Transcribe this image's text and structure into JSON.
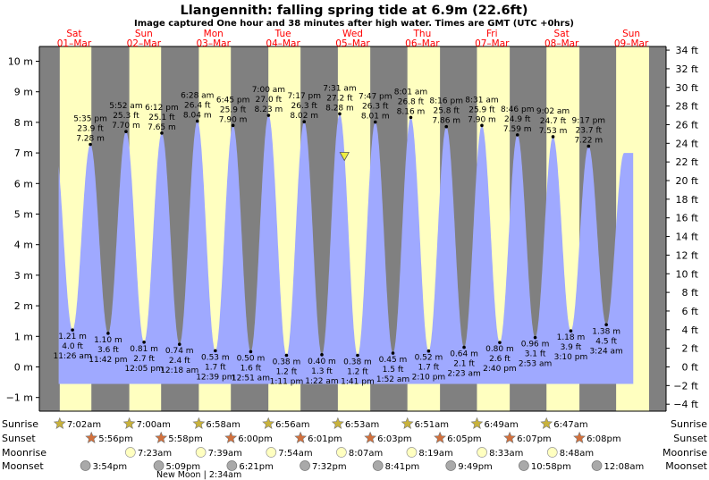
{
  "title": "Llangennith: falling  spring tide at 6.9m (22.6ft)",
  "subtitle": "Image captured One hour and 38 minutes after high water. Times are GMT (UTC +0hrs)",
  "days": [
    {
      "day": "Sat",
      "date": "01–Mar"
    },
    {
      "day": "Sun",
      "date": "02–Mar"
    },
    {
      "day": "Mon",
      "date": "03–Mar"
    },
    {
      "day": "Tue",
      "date": "04–Mar"
    },
    {
      "day": "Wed",
      "date": "05–Mar"
    },
    {
      "day": "Thu",
      "date": "06–Mar"
    },
    {
      "day": "Fri",
      "date": "07–Mar"
    },
    {
      "day": "Sat",
      "date": "08–Mar"
    },
    {
      "day": "Sun",
      "date": "09–Mar"
    }
  ],
  "colors": {
    "night": "#808080",
    "day": "#ffffc0",
    "tide": "#9fa9ff",
    "sunrise_star": "#c8b23c",
    "sunset_star": "#d2703c",
    "moonrise_disc": "#ffffc0",
    "moonset_disc": "#a9a9a9",
    "marker": "#eeee40",
    "day_label": "#ff0000"
  },
  "chart_data": {
    "type": "area",
    "y_left": {
      "unit": "m",
      "min": -1,
      "max": 10,
      "ticks": [
        "−1 m",
        "0 m",
        "1 m",
        "2 m",
        "3 m",
        "4 m",
        "5 m",
        "6 m",
        "7 m",
        "8 m",
        "9 m",
        "10 m"
      ]
    },
    "y_right": {
      "unit": "ft",
      "ticks": [
        "−4 ft",
        "−2 ft",
        "0 ft",
        "2 ft",
        "4 ft",
        "6 ft",
        "8 ft",
        "10 ft",
        "12 ft",
        "14 ft",
        "16 ft",
        "18 ft",
        "20 ft",
        "22 ft",
        "24 ft",
        "26 ft",
        "28 ft",
        "30 ft",
        "32 ft",
        "34 ft"
      ]
    },
    "start": "Sat 01-Mar 00:00",
    "end": "Sun 09-Mar 24:00",
    "current_marker": {
      "time": "Wed 05-Mar 09:09",
      "height_m": 6.9
    },
    "tides": [
      {
        "time": "Sat 01-Mar 11:26",
        "type": "low",
        "m": 1.21,
        "labels": [
          "1.21 m",
          "4.0 ft",
          "11:26 am"
        ]
      },
      {
        "time": "Sat 01-Mar 17:35",
        "type": "high",
        "m": 7.28,
        "labels": [
          "5:35 pm",
          "23.9 ft",
          "7.28 m"
        ]
      },
      {
        "time": "Sat 01-Mar 23:42",
        "type": "low",
        "m": 1.1,
        "labels": [
          "1.10 m",
          "3.6 ft",
          "11:42 pm"
        ]
      },
      {
        "time": "Sun 02-Mar 05:52",
        "type": "high",
        "m": 7.7,
        "labels": [
          "5:52 am",
          "25.3 ft",
          "7.70 m"
        ]
      },
      {
        "time": "Sun 02-Mar 12:05",
        "type": "low",
        "m": 0.81,
        "labels": [
          "0.81 m",
          "2.7 ft",
          "12:05 pm"
        ]
      },
      {
        "time": "Sun 02-Mar 18:12",
        "type": "high",
        "m": 7.65,
        "labels": [
          "6:12 pm",
          "25.1 ft",
          "7.65 m"
        ]
      },
      {
        "time": "Mon 03-Mar 00:18",
        "type": "low",
        "m": 0.74,
        "labels": [
          "0.74 m",
          "2.4 ft",
          "12:18 am"
        ]
      },
      {
        "time": "Mon 03-Mar 06:28",
        "type": "high",
        "m": 8.04,
        "labels": [
          "6:28 am",
          "26.4 ft",
          "8.04 m"
        ]
      },
      {
        "time": "Mon 03-Mar 12:39",
        "type": "low",
        "m": 0.53,
        "labels": [
          "0.53 m",
          "1.7 ft",
          "12:39 pm"
        ]
      },
      {
        "time": "Mon 03-Mar 18:45",
        "type": "high",
        "m": 7.9,
        "labels": [
          "6:45 pm",
          "25.9 ft",
          "7.90 m"
        ]
      },
      {
        "time": "Tue 04-Mar 00:51",
        "type": "low",
        "m": 0.5,
        "labels": [
          "0.50 m",
          "1.6 ft",
          "12:51 am"
        ]
      },
      {
        "time": "Tue 04-Mar 07:00",
        "type": "high",
        "m": 8.23,
        "labels": [
          "7:00 am",
          "27.0 ft",
          "8.23 m"
        ]
      },
      {
        "time": "Tue 04-Mar 13:11",
        "type": "low",
        "m": 0.38,
        "labels": [
          "0.38 m",
          "1.2 ft",
          "1:11 pm"
        ]
      },
      {
        "time": "Tue 04-Mar 19:17",
        "type": "high",
        "m": 8.02,
        "labels": [
          "7:17 pm",
          "26.3 ft",
          "8.02 m"
        ]
      },
      {
        "time": "Wed 05-Mar 01:22",
        "type": "low",
        "m": 0.4,
        "labels": [
          "0.40 m",
          "1.3 ft",
          "1:22 am"
        ]
      },
      {
        "time": "Wed 05-Mar 07:31",
        "type": "high",
        "m": 8.28,
        "labels": [
          "7:31 am",
          "27.2 ft",
          "8.28 m"
        ]
      },
      {
        "time": "Wed 05-Mar 13:41",
        "type": "low",
        "m": 0.38,
        "labels": [
          "0.38 m",
          "1.2 ft",
          "1:41 pm"
        ]
      },
      {
        "time": "Wed 05-Mar 19:47",
        "type": "high",
        "m": 8.01,
        "labels": [
          "7:47 pm",
          "26.3 ft",
          "8.01 m"
        ]
      },
      {
        "time": "Thu 06-Mar 01:52",
        "type": "low",
        "m": 0.45,
        "labels": [
          "0.45 m",
          "1.5 ft",
          "1:52 am"
        ]
      },
      {
        "time": "Thu 06-Mar 08:01",
        "type": "high",
        "m": 8.16,
        "labels": [
          "8:01 am",
          "26.8 ft",
          "8.16 m"
        ]
      },
      {
        "time": "Thu 06-Mar 14:10",
        "type": "low",
        "m": 0.52,
        "labels": [
          "0.52 m",
          "1.7 ft",
          "2:10 pm"
        ]
      },
      {
        "time": "Thu 06-Mar 20:16",
        "type": "high",
        "m": 7.86,
        "labels": [
          "8:16 pm",
          "25.8 ft",
          "7.86 m"
        ]
      },
      {
        "time": "Fri 07-Mar 02:23",
        "type": "low",
        "m": 0.64,
        "labels": [
          "0.64 m",
          "2.1 ft",
          "2:23 am"
        ]
      },
      {
        "time": "Fri 07-Mar 08:31",
        "type": "high",
        "m": 7.9,
        "labels": [
          "8:31 am",
          "25.9 ft",
          "7.90 m"
        ]
      },
      {
        "time": "Fri 07-Mar 14:40",
        "type": "low",
        "m": 0.8,
        "labels": [
          "0.80 m",
          "2.6 ft",
          "2:40 pm"
        ]
      },
      {
        "time": "Fri 07-Mar 20:46",
        "type": "high",
        "m": 7.59,
        "labels": [
          "8:46 pm",
          "24.9 ft",
          "7.59 m"
        ]
      },
      {
        "time": "Sat 08-Mar 02:53",
        "type": "low",
        "m": 0.96,
        "labels": [
          "0.96 m",
          "3.1 ft",
          "2:53 am"
        ]
      },
      {
        "time": "Sat 08-Mar 09:02",
        "type": "high",
        "m": 7.53,
        "labels": [
          "9:02 am",
          "24.7 ft",
          "7.53 m"
        ]
      },
      {
        "time": "Sat 08-Mar 15:10",
        "type": "low",
        "m": 1.18,
        "labels": [
          "1.18 m",
          "3.9 ft",
          "3:10 pm"
        ]
      },
      {
        "time": "Sat 08-Mar 21:17",
        "type": "high",
        "m": 7.22,
        "labels": [
          "9:17 pm",
          "23.7 ft",
          "7.22 m"
        ]
      },
      {
        "time": "Sun 09-Mar 03:24",
        "type": "low",
        "m": 1.38,
        "labels": [
          "1.38 m",
          "4.5 ft",
          "3:24 am"
        ]
      }
    ]
  },
  "sun_moon": {
    "row_labels": [
      "Sunrise",
      "Sunset",
      "Moonrise",
      "Moonset"
    ],
    "sunrise": [
      "7:02am",
      "7:00am",
      "6:58am",
      "6:56am",
      "6:53am",
      "6:51am",
      "6:49am",
      "6:47am"
    ],
    "sunset": [
      "5:56pm",
      "5:58pm",
      "6:00pm",
      "6:01pm",
      "6:03pm",
      "6:05pm",
      "6:07pm",
      "6:08pm"
    ],
    "moonrise": [
      "7:23am",
      "7:39am",
      "7:54am",
      "8:07am",
      "8:19am",
      "8:33am",
      "8:48am"
    ],
    "moonset": [
      "3:54pm",
      "5:09pm",
      "6:21pm",
      "7:32pm",
      "8:41pm",
      "9:49pm",
      "10:58pm",
      "12:08am"
    ],
    "new_moon": "New Moon | 2:34am"
  }
}
